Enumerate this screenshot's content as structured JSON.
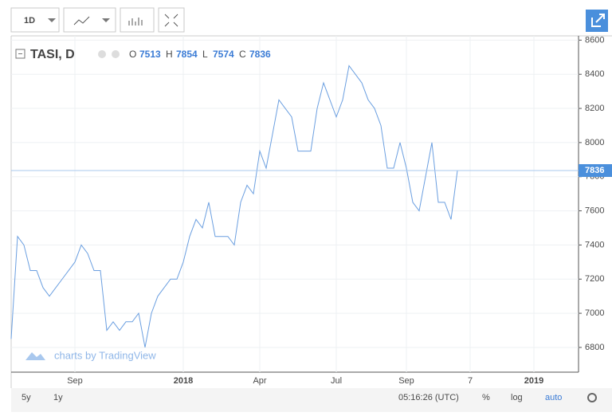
{
  "toolbar": {
    "interval": "1D"
  },
  "chart_data": {
    "type": "line",
    "title": "TASI, D",
    "ohlc": [
      {
        "label": "O",
        "value": 7513
      },
      {
        "label": "H",
        "value": 7854
      },
      {
        "label": "L",
        "value": 7574
      },
      {
        "label": "C",
        "value": 7836
      }
    ],
    "categories": [
      null,
      null,
      null,
      null,
      null,
      null,
      null,
      null,
      null,
      null,
      "Sep",
      null,
      null,
      null,
      null,
      null,
      null,
      null,
      null,
      null,
      null,
      null,
      null,
      null,
      null,
      null,
      null,
      "2018",
      null,
      null,
      null,
      null,
      null,
      null,
      null,
      null,
      null,
      null,
      null,
      "Apr",
      null,
      null,
      null,
      null,
      null,
      null,
      null,
      null,
      null,
      null,
      null,
      "Jul",
      null,
      null,
      null,
      null,
      null,
      null,
      null,
      null,
      null,
      null,
      "Sep",
      null,
      null,
      null,
      null,
      null,
      null,
      null,
      null,
      null,
      "7",
      null,
      null,
      null,
      null,
      null,
      null,
      null,
      null,
      null,
      "2019",
      null,
      null,
      null,
      null,
      null,
      null,
      null
    ],
    "series": [
      {
        "name": "TASI",
        "color": "#6b9fe0",
        "values": [
          6850,
          7450,
          7400,
          7250,
          7250,
          7150,
          7100,
          7150,
          7200,
          7250,
          7300,
          7400,
          7350,
          7250,
          7250,
          6900,
          6950,
          6900,
          6950,
          6950,
          7000,
          6800,
          7000,
          7100,
          7150,
          7200,
          7200,
          7300,
          7450,
          7550,
          7500,
          7650,
          7450,
          7450,
          7450,
          7400,
          7650,
          7750,
          7700,
          7950,
          7850,
          8050,
          8250,
          8200,
          8150,
          7950,
          7950,
          7950,
          8200,
          8350,
          8250,
          8150,
          8250,
          8450,
          8400,
          8350,
          8250,
          8200,
          8100,
          7850,
          7850,
          8000,
          7850,
          7650,
          7600,
          7800,
          8000,
          7650,
          7650,
          7550,
          7836,
          null,
          null,
          null,
          null,
          null,
          null,
          null,
          null,
          null,
          null,
          null,
          null,
          null,
          null,
          null,
          null,
          null,
          null,
          null
        ]
      }
    ],
    "ylim": [
      6655,
      8625
    ],
    "yticks": [
      6800,
      7000,
      7200,
      7400,
      7600,
      7800,
      8000,
      8200,
      8400,
      8600
    ],
    "grid": true,
    "watermark": "charts by TradingView"
  },
  "footer": {
    "ranges": [
      "5y",
      "1y"
    ],
    "time": "05:16:26 (UTC)",
    "options": [
      "%",
      "log",
      "auto"
    ]
  }
}
